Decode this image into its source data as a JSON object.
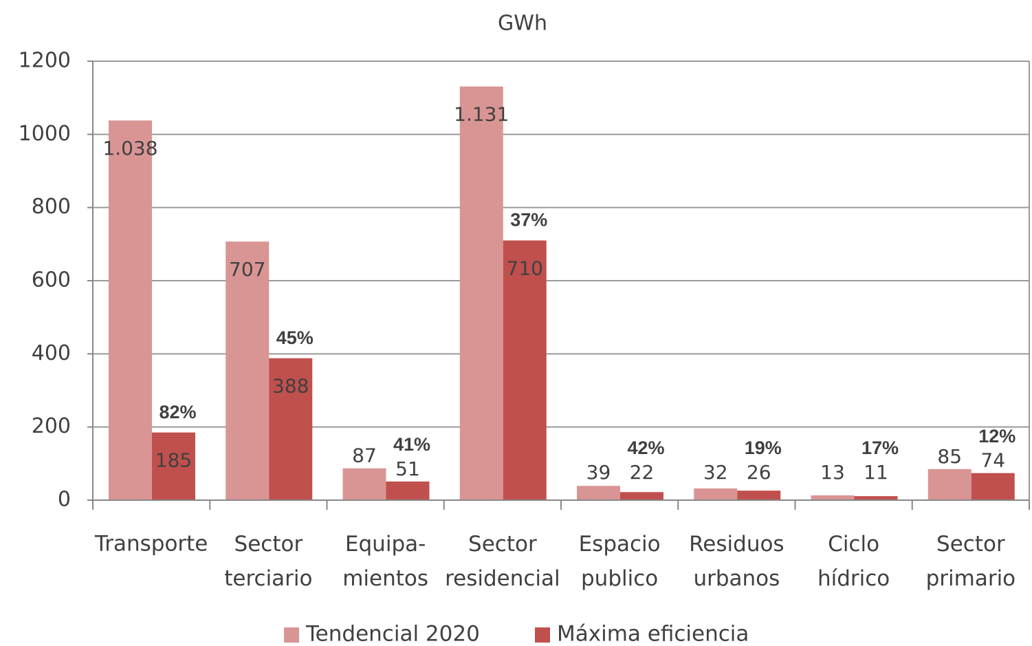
{
  "chart_data": {
    "type": "bar",
    "title": "GWh",
    "categories": [
      "Transporte",
      "Sector\nterciario",
      "Equipa-\nmientos",
      "Sector\nresidencial",
      "Espacio\npublico",
      "Residuos\nurbanos",
      "Ciclo\nhídrico",
      "Sector\nprimario"
    ],
    "series": [
      {
        "name": "Tendencial 2020",
        "color": "#d99594",
        "values": [
          1038,
          707,
          87,
          1131,
          39,
          32,
          13,
          85
        ],
        "value_labels": [
          "1.038",
          "707",
          "87",
          "1.131",
          "39",
          "32",
          "13",
          "85"
        ]
      },
      {
        "name": "Máxima eficiencia",
        "color": "#c0504d",
        "values": [
          185,
          388,
          51,
          710,
          22,
          26,
          11,
          74
        ],
        "annotations": [
          "82%",
          "45%",
          "41%",
          "37%",
          "42%",
          "19%",
          "17%",
          "12%"
        ]
      }
    ],
    "ylim": [
      0,
      1200
    ],
    "yticks": [
      0,
      200,
      400,
      600,
      800,
      1000,
      1200
    ],
    "grid": true,
    "legend": "bottom"
  }
}
